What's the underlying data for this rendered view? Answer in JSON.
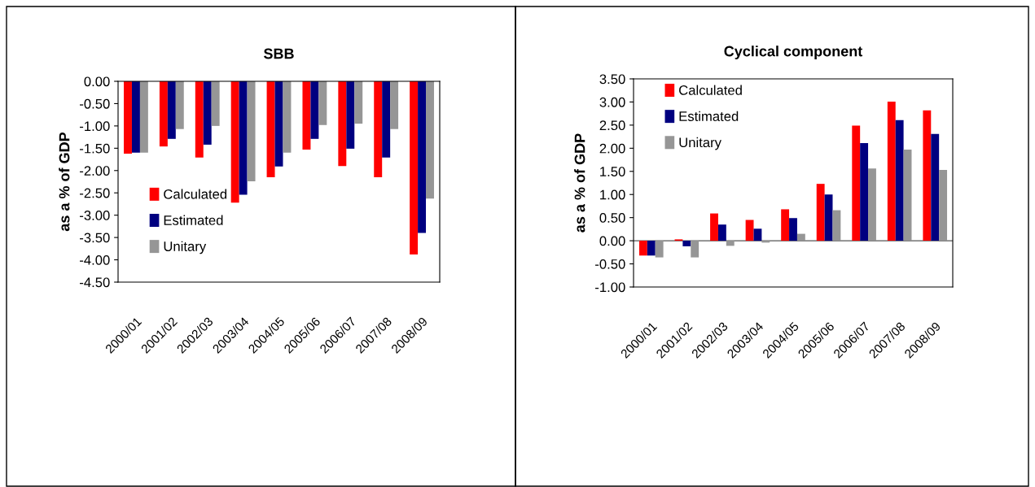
{
  "chart_data": [
    {
      "type": "bar",
      "title": "SBB",
      "ylabel": "as a % of GDP",
      "categories": [
        "2000/01",
        "2001/02",
        "2002/03",
        "2003/04",
        "2004/05",
        "2005/06",
        "2006/07",
        "2007/08",
        "2008/09"
      ],
      "series": [
        {
          "name": "Calculated",
          "color": "#ff0000",
          "values": [
            -1.62,
            -1.46,
            -1.71,
            -2.72,
            -2.15,
            -1.53,
            -1.9,
            -2.15,
            -3.88
          ]
        },
        {
          "name": "Estimated",
          "color": "#000080",
          "values": [
            -1.6,
            -1.29,
            -1.42,
            -2.54,
            -1.91,
            -1.29,
            -1.51,
            -1.71,
            -3.4
          ]
        },
        {
          "name": "Unitary",
          "color": "#969696",
          "values": [
            -1.6,
            -1.07,
            -1.0,
            -2.24,
            -1.6,
            -0.98,
            -0.95,
            -1.07,
            -2.63
          ]
        }
      ],
      "ylim": [
        -4.5,
        0
      ],
      "yticks": [
        {
          "value": -4.5,
          "label": "-4.50"
        },
        {
          "value": -4,
          "label": "-4.00"
        },
        {
          "value": -3.5,
          "label": "-3.50"
        },
        {
          "value": -3,
          "label": "-3.00"
        },
        {
          "value": -2.5,
          "label": "-2.50"
        },
        {
          "value": -2,
          "label": "-2.00"
        },
        {
          "value": -1.5,
          "label": "-1.50"
        },
        {
          "value": -1,
          "label": "-1.00"
        },
        {
          "value": -0.5,
          "label": "-0.50"
        },
        {
          "value": 0,
          "label": "0.00"
        }
      ],
      "legend": "bottom left"
    },
    {
      "type": "bar",
      "title": "Cyclical component",
      "ylabel": "as a % of GDP",
      "categories": [
        "2000/01",
        "2001/02",
        "2002/03",
        "2003/04",
        "2004/05",
        "2005/06",
        "2006/07",
        "2007/08",
        "2008/09"
      ],
      "series": [
        {
          "name": "Calculated",
          "color": "#ff0000",
          "values": [
            -0.32,
            0.03,
            0.59,
            0.45,
            0.68,
            1.23,
            2.49,
            3.01,
            2.82
          ]
        },
        {
          "name": "Estimated",
          "color": "#000080",
          "values": [
            -0.32,
            -0.12,
            0.35,
            0.26,
            0.49,
            1.0,
            2.11,
            2.61,
            2.31
          ]
        },
        {
          "name": "Unitary",
          "color": "#969696",
          "values": [
            -0.36,
            -0.36,
            -0.11,
            -0.04,
            0.15,
            0.66,
            1.56,
            1.97,
            1.53
          ]
        }
      ],
      "ylim": [
        -1,
        3.5
      ],
      "yticks": [
        {
          "value": -1,
          "label": "-1.00"
        },
        {
          "value": -0.5,
          "label": "-0.50"
        },
        {
          "value": 0,
          "label": "0.00"
        },
        {
          "value": 0.5,
          "label": "0.50"
        },
        {
          "value": 1,
          "label": "1.00"
        },
        {
          "value": 1.5,
          "label": "1.50"
        },
        {
          "value": 2,
          "label": "2.00"
        },
        {
          "value": 2.5,
          "label": "2.50"
        },
        {
          "value": 3,
          "label": "3.00"
        },
        {
          "value": 3.5,
          "label": "3.50"
        }
      ],
      "legend": "top left"
    }
  ]
}
